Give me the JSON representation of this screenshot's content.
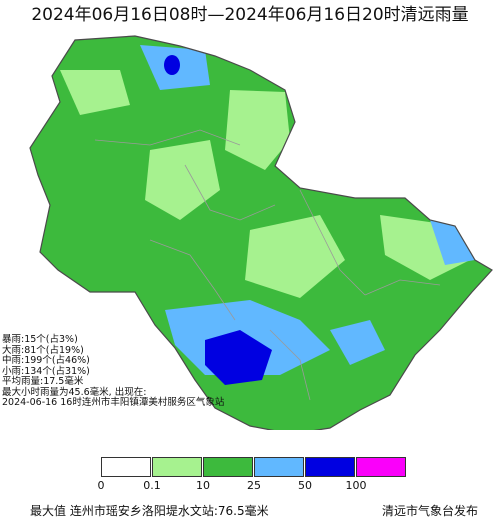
{
  "title": "2024年06月16日08时—2024年06月16日20时清远雨量",
  "map": {
    "colors": {
      "outside": "#ffffff",
      "light": "#a6f28f",
      "moderate": "#3dba3d",
      "heavy": "#61b8ff",
      "rainstorm": "#0000e1",
      "boundary": "#9a9a9a"
    }
  },
  "stats": {
    "lines": [
      "暴雨:15个(占3%)",
      "大雨:81个(占19%)",
      "中雨:199个(占46%)",
      "小雨:134个(占31%)",
      "平均雨量:17.5毫米",
      "最大小时雨量为45.6毫米, 出现在:",
      "2024-06-16 16时连州市丰阳镇潭美村服务区气象站"
    ]
  },
  "legend": {
    "ticks": [
      "0",
      "0.1",
      "10",
      "25",
      "50",
      "100"
    ],
    "colors": [
      "#ffffff",
      "#a6f28f",
      "#3dba3d",
      "#61b8ff",
      "#0000e1",
      "#fa00fa"
    ]
  },
  "footer": {
    "max_station": "最大值  连州市瑶安乡洛阳堤水文站:76.5毫米",
    "publisher": "清远市气象台发布"
  }
}
